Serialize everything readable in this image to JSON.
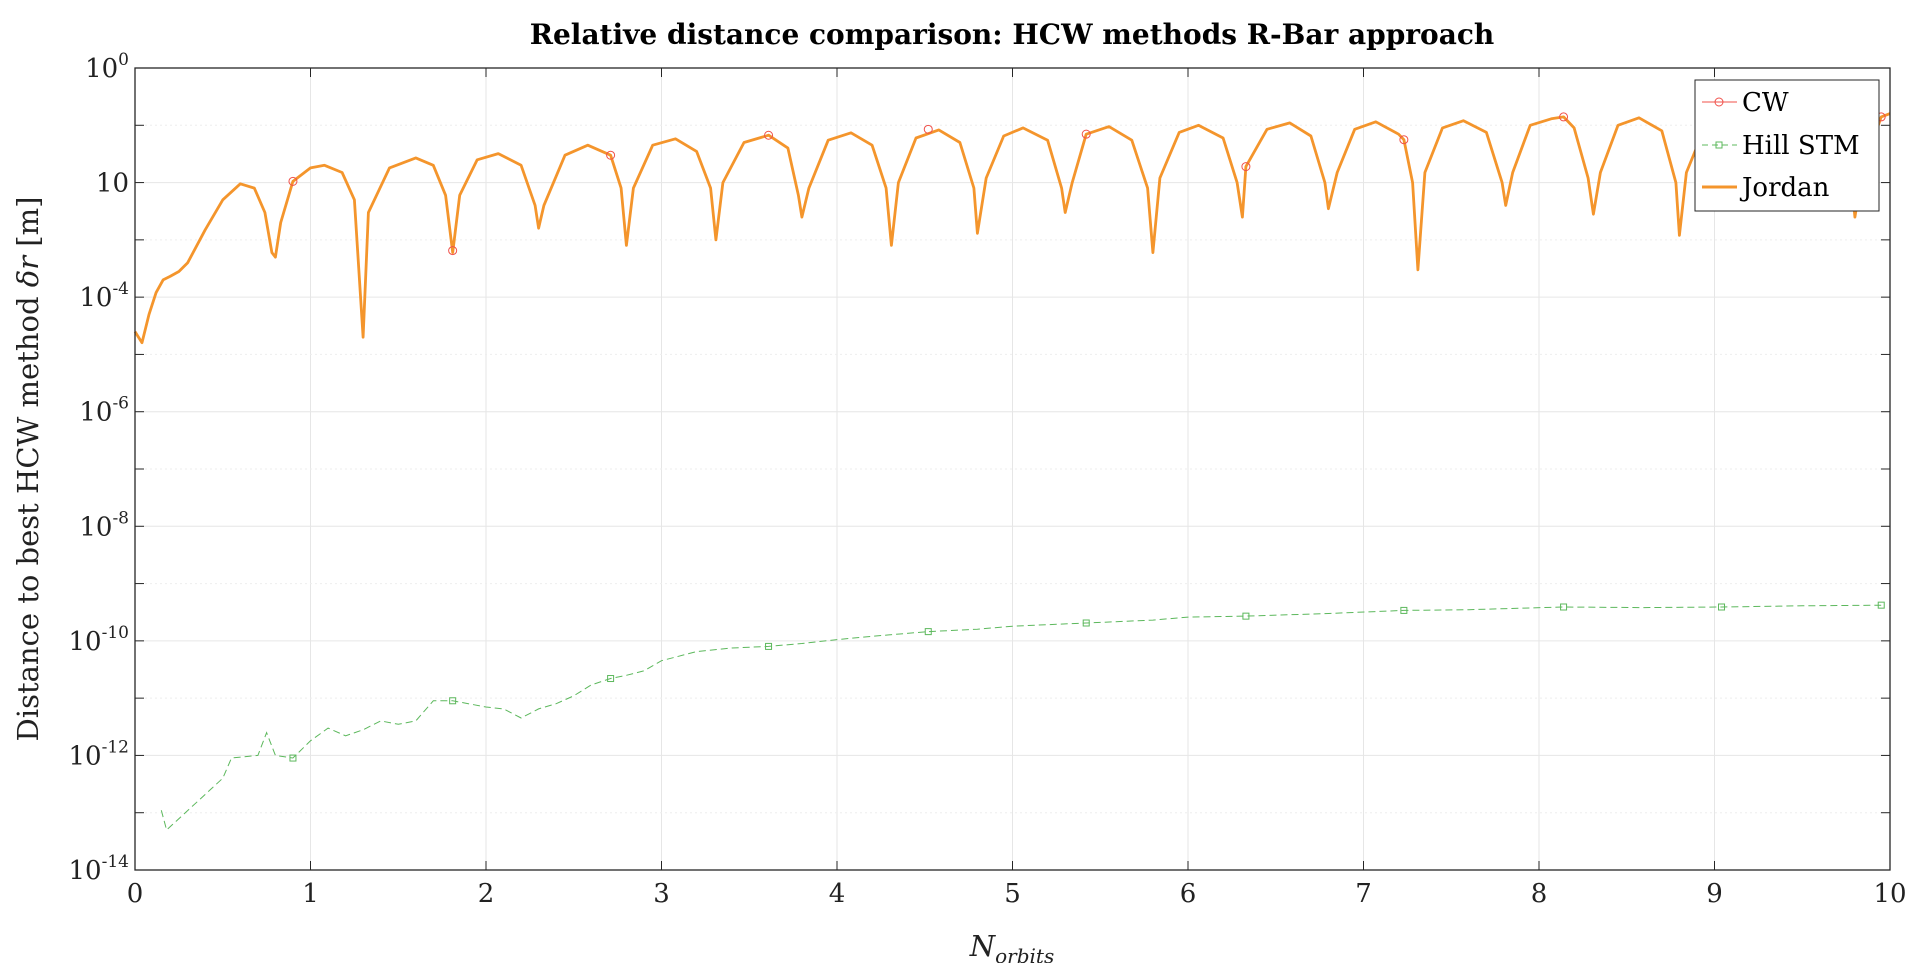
{
  "chart_data": {
    "type": "line",
    "title": "Relative distance comparison: HCW methods R-Bar approach",
    "xlabel_main": "N",
    "xlabel_sub": "orbits",
    "ylabel_main": "Distance to best HCW method ",
    "ylabel_sym": "δr",
    "ylabel_unit": " [m]",
    "xlim": [
      0,
      10
    ],
    "ylim_exp": [
      -14,
      0
    ],
    "yscale": "log",
    "grid": true,
    "legend_position": "top-right",
    "x_ticks": [
      {
        "v": 0,
        "label": "0"
      },
      {
        "v": 1,
        "label": "1"
      },
      {
        "v": 2,
        "label": "2"
      },
      {
        "v": 3,
        "label": "3"
      },
      {
        "v": 4,
        "label": "4"
      },
      {
        "v": 5,
        "label": "5"
      },
      {
        "v": 6,
        "label": "6"
      },
      {
        "v": 7,
        "label": "7"
      },
      {
        "v": 8,
        "label": "8"
      },
      {
        "v": 9,
        "label": "9"
      },
      {
        "v": 10,
        "label": "10"
      }
    ],
    "y_ticks": [
      {
        "exp": 0,
        "base": "10",
        "sup": "0"
      },
      {
        "exp": -2,
        "base": "10",
        "sup": ""
      },
      {
        "exp": -4,
        "base": "10",
        "sup": "-4"
      },
      {
        "exp": -6,
        "base": "10",
        "sup": "-6"
      },
      {
        "exp": -8,
        "base": "10",
        "sup": "-8"
      },
      {
        "exp": -10,
        "base": "10",
        "sup": "-10"
      },
      {
        "exp": -12,
        "base": "10",
        "sup": "-12"
      },
      {
        "exp": -14,
        "base": "10",
        "sup": "-14"
      }
    ],
    "series": [
      {
        "name": "CW",
        "color": "#f0504a",
        "style": "marker-circle",
        "markers": [
          {
            "x": 0.9,
            "y": 0.0105
          },
          {
            "x": 1.81,
            "y": 0.00065
          },
          {
            "x": 2.71,
            "y": 0.03
          },
          {
            "x": 3.61,
            "y": 0.067
          },
          {
            "x": 4.52,
            "y": 0.085
          },
          {
            "x": 5.42,
            "y": 0.07
          },
          {
            "x": 6.33,
            "y": 0.019
          },
          {
            "x": 7.23,
            "y": 0.056
          },
          {
            "x": 8.14,
            "y": 0.14
          },
          {
            "x": 9.95,
            "y": 0.14
          }
        ]
      },
      {
        "name": "Hill STM",
        "color": "#5cb85c",
        "style": "dashed-square",
        "points": [
          {
            "x": 0.15,
            "y": 1.1e-13
          },
          {
            "x": 0.18,
            "y": 5e-14
          },
          {
            "x": 0.5,
            "y": 4e-13
          },
          {
            "x": 0.55,
            "y": 9e-13
          },
          {
            "x": 0.7,
            "y": 1e-12
          },
          {
            "x": 0.75,
            "y": 2.5e-12
          },
          {
            "x": 0.8,
            "y": 1e-12
          },
          {
            "x": 0.9,
            "y": 9e-13
          },
          {
            "x": 1.0,
            "y": 1.8e-12
          },
          {
            "x": 1.1,
            "y": 3e-12
          },
          {
            "x": 1.2,
            "y": 2.2e-12
          },
          {
            "x": 1.3,
            "y": 2.8e-12
          },
          {
            "x": 1.4,
            "y": 4e-12
          },
          {
            "x": 1.5,
            "y": 3.5e-12
          },
          {
            "x": 1.6,
            "y": 4e-12
          },
          {
            "x": 1.7,
            "y": 9e-12
          },
          {
            "x": 1.81,
            "y": 9e-12
          },
          {
            "x": 1.9,
            "y": 8e-12
          },
          {
            "x": 2.0,
            "y": 7e-12
          },
          {
            "x": 2.1,
            "y": 6.5e-12
          },
          {
            "x": 2.2,
            "y": 4.5e-12
          },
          {
            "x": 2.3,
            "y": 6.5e-12
          },
          {
            "x": 2.4,
            "y": 8e-12
          },
          {
            "x": 2.5,
            "y": 1.1e-11
          },
          {
            "x": 2.6,
            "y": 1.7e-11
          },
          {
            "x": 2.71,
            "y": 2.2e-11
          },
          {
            "x": 2.8,
            "y": 2.5e-11
          },
          {
            "x": 2.9,
            "y": 3e-11
          },
          {
            "x": 3.0,
            "y": 4.5e-11
          },
          {
            "x": 3.2,
            "y": 6.5e-11
          },
          {
            "x": 3.4,
            "y": 7.5e-11
          },
          {
            "x": 3.61,
            "y": 8e-11
          },
          {
            "x": 3.8,
            "y": 9e-11
          },
          {
            "x": 4.0,
            "y": 1.05e-10
          },
          {
            "x": 4.2,
            "y": 1.2e-10
          },
          {
            "x": 4.52,
            "y": 1.45e-10
          },
          {
            "x": 4.8,
            "y": 1.6e-10
          },
          {
            "x": 5.0,
            "y": 1.8e-10
          },
          {
            "x": 5.42,
            "y": 2.05e-10
          },
          {
            "x": 5.8,
            "y": 2.3e-10
          },
          {
            "x": 6.0,
            "y": 2.6e-10
          },
          {
            "x": 6.33,
            "y": 2.7e-10
          },
          {
            "x": 6.8,
            "y": 3e-10
          },
          {
            "x": 7.23,
            "y": 3.4e-10
          },
          {
            "x": 7.6,
            "y": 3.5e-10
          },
          {
            "x": 8.14,
            "y": 3.9e-10
          },
          {
            "x": 8.6,
            "y": 3.8e-10
          },
          {
            "x": 9.04,
            "y": 3.9e-10
          },
          {
            "x": 9.5,
            "y": 4.1e-10
          },
          {
            "x": 9.95,
            "y": 4.2e-10
          }
        ],
        "markers": [
          {
            "x": 0.9,
            "y": 9e-13
          },
          {
            "x": 1.81,
            "y": 9e-12
          },
          {
            "x": 2.71,
            "y": 2.2e-11
          },
          {
            "x": 3.61,
            "y": 8e-11
          },
          {
            "x": 4.52,
            "y": 1.45e-10
          },
          {
            "x": 5.42,
            "y": 2.05e-10
          },
          {
            "x": 6.33,
            "y": 2.7e-10
          },
          {
            "x": 7.23,
            "y": 3.4e-10
          },
          {
            "x": 8.14,
            "y": 3.9e-10
          },
          {
            "x": 9.04,
            "y": 3.9e-10
          },
          {
            "x": 9.95,
            "y": 4.2e-10
          }
        ]
      },
      {
        "name": "Jordan",
        "color": "#f4952c",
        "style": "solid",
        "points": [
          {
            "x": 0.0,
            "y": 2.5e-05
          },
          {
            "x": 0.04,
            "y": 1.6e-05
          },
          {
            "x": 0.08,
            "y": 5e-05
          },
          {
            "x": 0.12,
            "y": 0.00012
          },
          {
            "x": 0.16,
            "y": 0.0002
          },
          {
            "x": 0.2,
            "y": 0.00023
          },
          {
            "x": 0.25,
            "y": 0.00028
          },
          {
            "x": 0.3,
            "y": 0.0004
          },
          {
            "x": 0.4,
            "y": 0.0015
          },
          {
            "x": 0.5,
            "y": 0.005
          },
          {
            "x": 0.6,
            "y": 0.0095
          },
          {
            "x": 0.68,
            "y": 0.008
          },
          {
            "x": 0.74,
            "y": 0.003
          },
          {
            "x": 0.78,
            "y": 0.0006
          },
          {
            "x": 0.8,
            "y": 0.0005
          },
          {
            "x": 0.83,
            "y": 0.002
          },
          {
            "x": 0.9,
            "y": 0.0105
          },
          {
            "x": 1.0,
            "y": 0.018
          },
          {
            "x": 1.08,
            "y": 0.02
          },
          {
            "x": 1.18,
            "y": 0.015
          },
          {
            "x": 1.25,
            "y": 0.005
          },
          {
            "x": 1.3,
            "y": 2e-05
          },
          {
            "x": 1.33,
            "y": 0.003
          },
          {
            "x": 1.45,
            "y": 0.018
          },
          {
            "x": 1.6,
            "y": 0.027
          },
          {
            "x": 1.7,
            "y": 0.02
          },
          {
            "x": 1.77,
            "y": 0.006
          },
          {
            "x": 1.81,
            "y": 0.0006
          },
          {
            "x": 1.85,
            "y": 0.006
          },
          {
            "x": 1.95,
            "y": 0.025
          },
          {
            "x": 2.07,
            "y": 0.032
          },
          {
            "x": 2.2,
            "y": 0.02
          },
          {
            "x": 2.28,
            "y": 0.004
          },
          {
            "x": 2.3,
            "y": 0.0016
          },
          {
            "x": 2.33,
            "y": 0.004
          },
          {
            "x": 2.45,
            "y": 0.03
          },
          {
            "x": 2.58,
            "y": 0.045
          },
          {
            "x": 2.71,
            "y": 0.03
          },
          {
            "x": 2.77,
            "y": 0.008
          },
          {
            "x": 2.8,
            "y": 0.0008
          },
          {
            "x": 2.84,
            "y": 0.008
          },
          {
            "x": 2.95,
            "y": 0.045
          },
          {
            "x": 3.08,
            "y": 0.058
          },
          {
            "x": 3.2,
            "y": 0.035
          },
          {
            "x": 3.28,
            "y": 0.008
          },
          {
            "x": 3.31,
            "y": 0.001
          },
          {
            "x": 3.35,
            "y": 0.01
          },
          {
            "x": 3.47,
            "y": 0.05
          },
          {
            "x": 3.61,
            "y": 0.067
          },
          {
            "x": 3.72,
            "y": 0.04
          },
          {
            "x": 3.78,
            "y": 0.006
          },
          {
            "x": 3.8,
            "y": 0.0025
          },
          {
            "x": 3.84,
            "y": 0.008
          },
          {
            "x": 3.95,
            "y": 0.055
          },
          {
            "x": 4.08,
            "y": 0.074
          },
          {
            "x": 4.2,
            "y": 0.045
          },
          {
            "x": 4.28,
            "y": 0.008
          },
          {
            "x": 4.31,
            "y": 0.0008
          },
          {
            "x": 4.35,
            "y": 0.01
          },
          {
            "x": 4.45,
            "y": 0.06
          },
          {
            "x": 4.58,
            "y": 0.083
          },
          {
            "x": 4.7,
            "y": 0.05
          },
          {
            "x": 4.78,
            "y": 0.008
          },
          {
            "x": 4.8,
            "y": 0.0013
          },
          {
            "x": 4.85,
            "y": 0.012
          },
          {
            "x": 4.95,
            "y": 0.065
          },
          {
            "x": 5.06,
            "y": 0.09
          },
          {
            "x": 5.2,
            "y": 0.055
          },
          {
            "x": 5.28,
            "y": 0.008
          },
          {
            "x": 5.3,
            "y": 0.003
          },
          {
            "x": 5.34,
            "y": 0.01
          },
          {
            "x": 5.42,
            "y": 0.07
          },
          {
            "x": 5.55,
            "y": 0.095
          },
          {
            "x": 5.68,
            "y": 0.055
          },
          {
            "x": 5.77,
            "y": 0.008
          },
          {
            "x": 5.8,
            "y": 0.0006
          },
          {
            "x": 5.84,
            "y": 0.012
          },
          {
            "x": 5.95,
            "y": 0.075
          },
          {
            "x": 6.06,
            "y": 0.1
          },
          {
            "x": 6.2,
            "y": 0.06
          },
          {
            "x": 6.28,
            "y": 0.01
          },
          {
            "x": 6.31,
            "y": 0.0025
          },
          {
            "x": 6.33,
            "y": 0.019
          },
          {
            "x": 6.45,
            "y": 0.085
          },
          {
            "x": 6.58,
            "y": 0.11
          },
          {
            "x": 6.7,
            "y": 0.065
          },
          {
            "x": 6.78,
            "y": 0.01
          },
          {
            "x": 6.8,
            "y": 0.0035
          },
          {
            "x": 6.85,
            "y": 0.015
          },
          {
            "x": 6.95,
            "y": 0.085
          },
          {
            "x": 7.07,
            "y": 0.115
          },
          {
            "x": 7.2,
            "y": 0.07
          },
          {
            "x": 7.23,
            "y": 0.056
          },
          {
            "x": 7.28,
            "y": 0.01
          },
          {
            "x": 7.31,
            "y": 0.0003
          },
          {
            "x": 7.35,
            "y": 0.015
          },
          {
            "x": 7.45,
            "y": 0.09
          },
          {
            "x": 7.57,
            "y": 0.12
          },
          {
            "x": 7.7,
            "y": 0.075
          },
          {
            "x": 7.79,
            "y": 0.01
          },
          {
            "x": 7.81,
            "y": 0.004
          },
          {
            "x": 7.85,
            "y": 0.015
          },
          {
            "x": 7.95,
            "y": 0.1
          },
          {
            "x": 8.07,
            "y": 0.13
          },
          {
            "x": 8.14,
            "y": 0.14
          },
          {
            "x": 8.2,
            "y": 0.09
          },
          {
            "x": 8.28,
            "y": 0.012
          },
          {
            "x": 8.31,
            "y": 0.0028
          },
          {
            "x": 8.35,
            "y": 0.015
          },
          {
            "x": 8.45,
            "y": 0.1
          },
          {
            "x": 8.57,
            "y": 0.135
          },
          {
            "x": 8.7,
            "y": 0.08
          },
          {
            "x": 8.78,
            "y": 0.01
          },
          {
            "x": 8.8,
            "y": 0.0012
          },
          {
            "x": 8.84,
            "y": 0.015
          },
          {
            "x": 8.95,
            "y": 0.1
          },
          {
            "x": 9.07,
            "y": 0.14
          },
          {
            "x": 9.2,
            "y": 0.09
          },
          {
            "x": 9.28,
            "y": 0.012
          },
          {
            "x": 9.3,
            "y": 0.004
          },
          {
            "x": 9.35,
            "y": 0.015
          },
          {
            "x": 9.45,
            "y": 0.1
          },
          {
            "x": 9.57,
            "y": 0.145
          },
          {
            "x": 9.7,
            "y": 0.09
          },
          {
            "x": 9.78,
            "y": 0.012
          },
          {
            "x": 9.8,
            "y": 0.0025
          },
          {
            "x": 9.84,
            "y": 0.015
          },
          {
            "x": 9.95,
            "y": 0.14
          },
          {
            "x": 10.0,
            "y": 0.16
          }
        ]
      }
    ]
  }
}
